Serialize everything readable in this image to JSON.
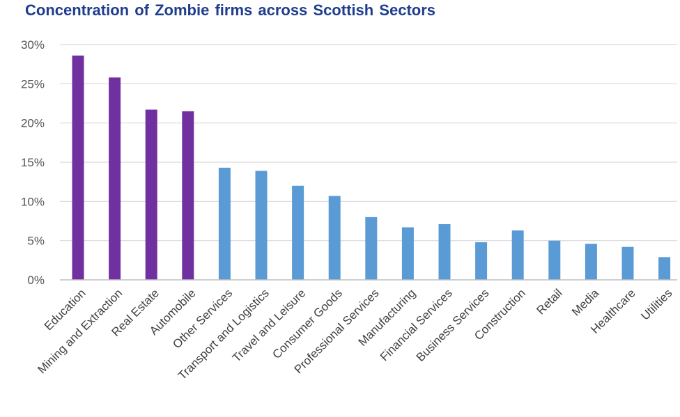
{
  "chart_data": {
    "type": "bar",
    "title": "Concentration of Zombie firms across Scottish Sectors",
    "xlabel": "",
    "ylabel": "",
    "ylim": [
      0,
      30
    ],
    "yticks": [
      "0%",
      "5%",
      "10%",
      "15%",
      "20%",
      "25%",
      "30%"
    ],
    "grid": true,
    "legend": "none",
    "categories": [
      "Education",
      "Mining and Extraction",
      "Real Estate",
      "Automobile",
      "Other Services",
      "Transport and Logistics",
      "Travel and Leisure",
      "Consumer Goods",
      "Professional Services",
      "Manufacturing",
      "Financial Services",
      "Business Services",
      "Construction",
      "Retail",
      "Media",
      "Healthcare",
      "Utilities"
    ],
    "values": [
      28.6,
      25.8,
      21.7,
      21.5,
      14.3,
      13.9,
      12.0,
      10.7,
      8.0,
      6.7,
      7.1,
      4.8,
      6.3,
      5.0,
      4.6,
      4.2,
      2.9
    ],
    "colors": [
      "#7030a0",
      "#7030a0",
      "#7030a0",
      "#7030a0",
      "#5b9bd5",
      "#5b9bd5",
      "#5b9bd5",
      "#5b9bd5",
      "#5b9bd5",
      "#5b9bd5",
      "#5b9bd5",
      "#5b9bd5",
      "#5b9bd5",
      "#5b9bd5",
      "#5b9bd5",
      "#5b9bd5",
      "#5b9bd5"
    ]
  }
}
